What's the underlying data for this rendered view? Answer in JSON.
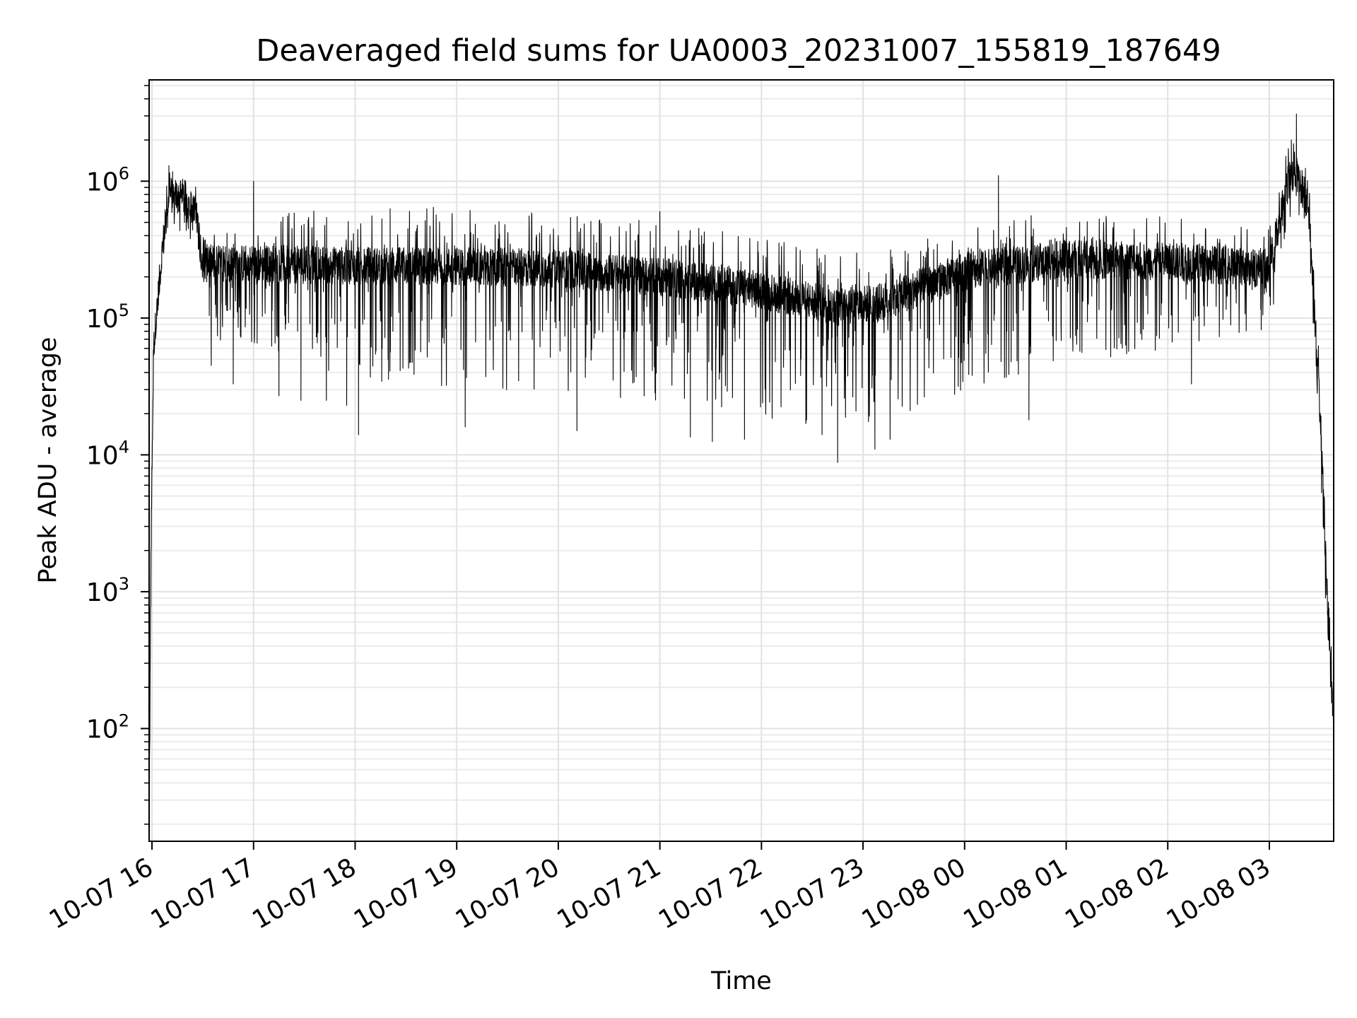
{
  "chart_data": {
    "type": "line",
    "title": "Deaveraged field sums for UA0003_20231007_155819_187649",
    "xlabel": "Time",
    "ylabel": "Peak ADU - average",
    "yscale": "log",
    "ylim": [
      15,
      5500000
    ],
    "xlim": [
      "2023-10-07 15:58:19",
      "2023-10-08 03:38:00"
    ],
    "x_tick_labels": [
      "10-07 16",
      "10-07 17",
      "10-07 18",
      "10-07 19",
      "10-07 20",
      "10-07 21",
      "10-07 22",
      "10-07 23",
      "10-08 00",
      "10-08 01",
      "10-08 02",
      "10-08 03"
    ],
    "x_ticks": [
      "2023-10-07 16:00",
      "2023-10-07 17:00",
      "2023-10-07 18:00",
      "2023-10-07 19:00",
      "2023-10-07 20:00",
      "2023-10-07 21:00",
      "2023-10-07 22:00",
      "2023-10-07 23:00",
      "2023-10-08 00:00",
      "2023-10-08 01:00",
      "2023-10-08 02:00",
      "2023-10-08 03:00"
    ],
    "y_tick_labels": [
      {
        "base": "10",
        "exp": "2"
      },
      {
        "base": "10",
        "exp": "3"
      },
      {
        "base": "10",
        "exp": "4"
      },
      {
        "base": "10",
        "exp": "5"
      },
      {
        "base": "10",
        "exp": "6"
      }
    ],
    "y_ticks": [
      100,
      1000,
      10000,
      100000,
      1000000
    ],
    "grid": "major and minor",
    "line_color": "#000000",
    "series": [
      {
        "envelope": [
          {
            "t": "2023-10-07 15:58:19",
            "median": 20,
            "upper": 30,
            "lower": 15
          },
          {
            "t": "2023-10-07 15:59:30",
            "median": 2500,
            "upper": 5000,
            "lower": 1500
          },
          {
            "t": "2023-10-07 16:01:00",
            "median": 60000,
            "upper": 120000,
            "lower": 50000
          },
          {
            "t": "2023-10-07 16:06:00",
            "median": 300000,
            "upper": 700000,
            "lower": 250000
          },
          {
            "t": "2023-10-07 16:10:00",
            "median": 800000,
            "upper": 1300000,
            "lower": 500000
          },
          {
            "t": "2023-10-07 16:20:00",
            "median": 750000,
            "upper": 1000000,
            "lower": 400000
          },
          {
            "t": "2023-10-07 16:27:00",
            "median": 500000,
            "upper": 1000000,
            "lower": 300000
          },
          {
            "t": "2023-10-07 16:30:00",
            "median": 250000,
            "upper": 500000,
            "lower": 70000
          },
          {
            "t": "2023-10-07 17:00:00",
            "median": 250000,
            "upper": 550000,
            "lower": 60000
          },
          {
            "t": "2023-10-07 18:00:00",
            "median": 240000,
            "upper": 650000,
            "lower": 35000
          },
          {
            "t": "2023-10-07 19:00:00",
            "median": 240000,
            "upper": 650000,
            "lower": 30000
          },
          {
            "t": "2023-10-07 20:00:00",
            "median": 230000,
            "upper": 600000,
            "lower": 28000
          },
          {
            "t": "2023-10-07 21:00:00",
            "median": 200000,
            "upper": 500000,
            "lower": 25000
          },
          {
            "t": "2023-10-07 22:00:00",
            "median": 160000,
            "upper": 400000,
            "lower": 18000
          },
          {
            "t": "2023-10-07 22:45:00",
            "median": 120000,
            "upper": 300000,
            "lower": 12000
          },
          {
            "t": "2023-10-07 23:10:00",
            "median": 130000,
            "upper": 300000,
            "lower": 15000
          },
          {
            "t": "2023-10-08 00:00:00",
            "median": 220000,
            "upper": 500000,
            "lower": 30000
          },
          {
            "t": "2023-10-08 01:00:00",
            "median": 270000,
            "upper": 600000,
            "lower": 45000
          },
          {
            "t": "2023-10-08 02:00:00",
            "median": 260000,
            "upper": 550000,
            "lower": 60000
          },
          {
            "t": "2023-10-08 03:00:00",
            "median": 230000,
            "upper": 450000,
            "lower": 80000
          },
          {
            "t": "2023-10-08 03:10:00",
            "median": 900000,
            "upper": 1800000,
            "lower": 400000
          },
          {
            "t": "2023-10-08 03:15:00",
            "median": 1200000,
            "upper": 2000000,
            "lower": 600000
          },
          {
            "t": "2023-10-08 03:23:00",
            "median": 700000,
            "upper": 1200000,
            "lower": 400000
          },
          {
            "t": "2023-10-08 03:30:00",
            "median": 20000,
            "upper": 40000,
            "lower": 10000
          },
          {
            "t": "2023-10-08 03:35:00",
            "median": 500,
            "upper": 1000,
            "lower": 200
          },
          {
            "t": "2023-10-08 03:38:00",
            "median": 100,
            "upper": 200,
            "lower": 50
          }
        ],
        "peaks": [
          {
            "t": "2023-10-07 16:10:00",
            "value": 1300000
          },
          {
            "t": "2023-10-07 17:00:00",
            "value": 1000000
          },
          {
            "t": "2023-10-07 21:00:00",
            "value": 600000
          },
          {
            "t": "2023-10-08 00:20:00",
            "value": 1100000
          },
          {
            "t": "2023-10-08 03:16:00",
            "value": 3100000
          },
          {
            "t": "2023-10-08 03:13:00",
            "value": 2000000
          }
        ],
        "dips": [
          {
            "t": "2023-10-07 16:35:00",
            "value": 45000
          },
          {
            "t": "2023-10-07 16:48:00",
            "value": 33000
          },
          {
            "t": "2023-10-07 17:15:00",
            "value": 27000
          },
          {
            "t": "2023-10-07 17:28:00",
            "value": 25000
          },
          {
            "t": "2023-10-07 17:43:00",
            "value": 25000
          },
          {
            "t": "2023-10-07 17:55:00",
            "value": 23000
          },
          {
            "t": "2023-10-07 18:02:00",
            "value": 14000
          },
          {
            "t": "2023-10-07 19:05:00",
            "value": 16000
          },
          {
            "t": "2023-10-07 20:11:00",
            "value": 15000
          },
          {
            "t": "2023-10-07 21:50:00",
            "value": 13000
          },
          {
            "t": "2023-10-07 21:18:00",
            "value": 13500
          },
          {
            "t": "2023-10-07 21:31:00",
            "value": 12500
          },
          {
            "t": "2023-10-07 22:45:00",
            "value": 8800
          },
          {
            "t": "2023-10-07 23:07:00",
            "value": 11000
          },
          {
            "t": "2023-10-07 23:16:00",
            "value": 13000
          },
          {
            "t": "2023-10-08 00:38:00",
            "value": 18000
          },
          {
            "t": "2023-10-08 02:14:00",
            "value": 33000
          }
        ]
      }
    ]
  }
}
